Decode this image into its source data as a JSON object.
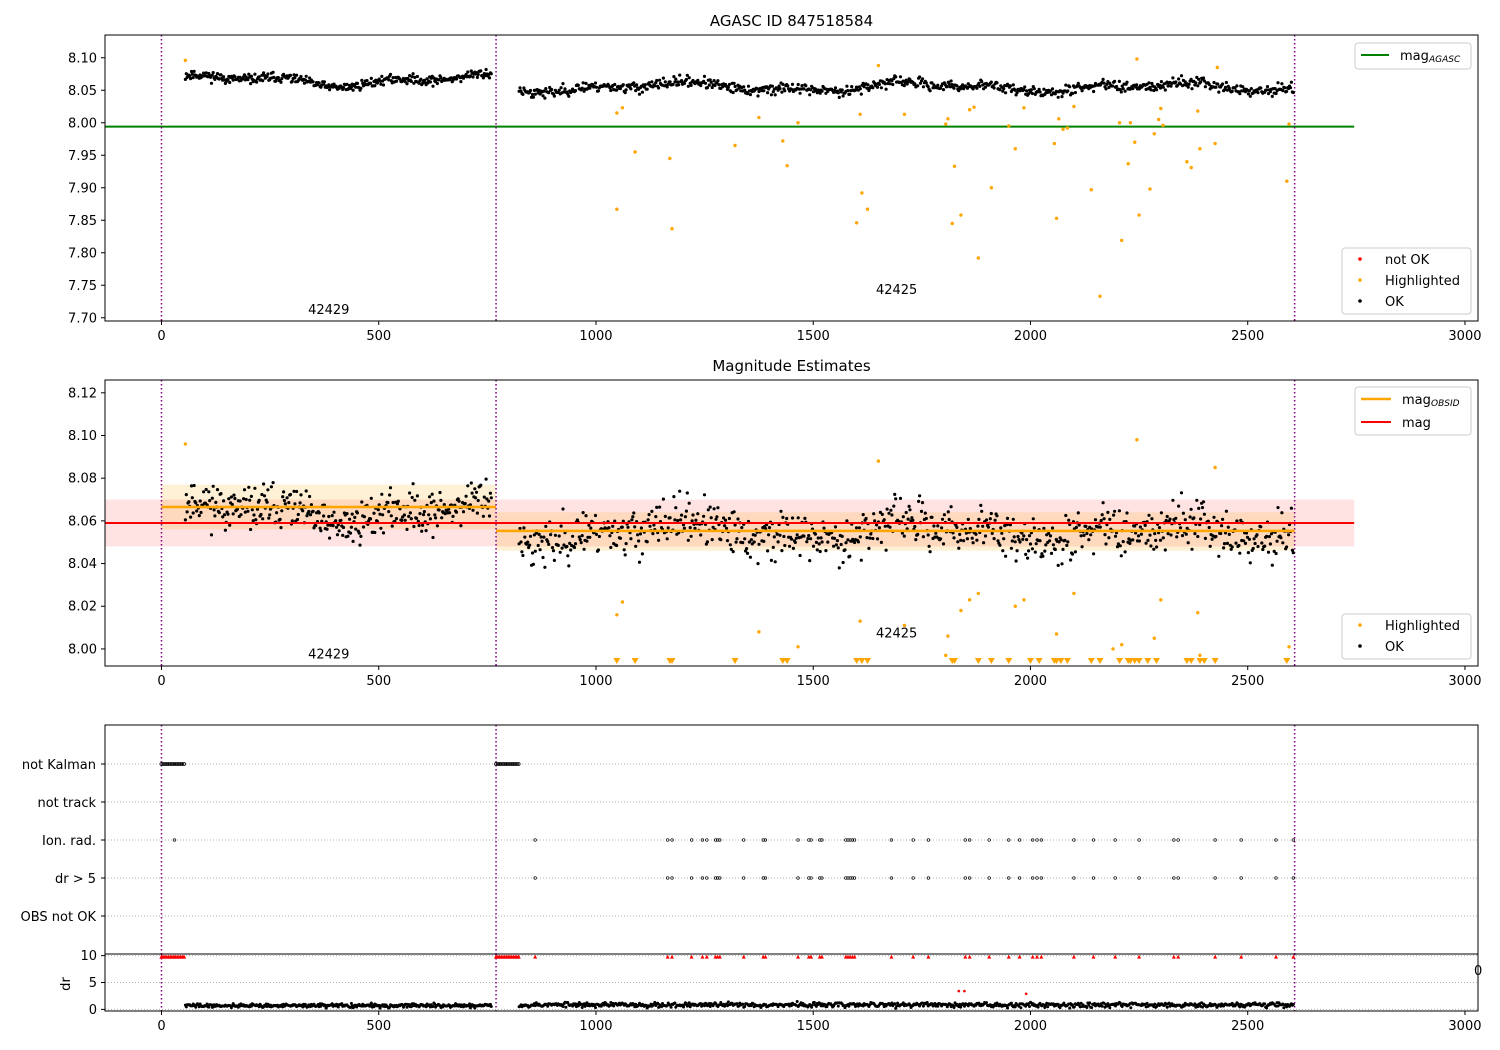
{
  "chart_data": [
    {
      "type": "scatter",
      "title": "AGASC ID 847518584",
      "xlim": [
        -130,
        3030
      ],
      "ylim": [
        7.695,
        8.135
      ],
      "xticks": [
        0,
        500,
        1000,
        1500,
        2000,
        2500,
        3000
      ],
      "yticks": [
        7.7,
        7.75,
        7.8,
        7.85,
        7.9,
        7.95,
        8.0,
        8.05,
        8.1
      ],
      "ytick_decimals": 2,
      "grid": false,
      "vlines": [
        0,
        770,
        2608
      ],
      "obsid_labels": [
        {
          "text": "42429",
          "x": 385,
          "y": 7.712
        },
        {
          "text": "42425",
          "x": 1692,
          "y": 7.743
        }
      ],
      "hline": {
        "y": 7.994,
        "x": [
          -130,
          2745
        ],
        "color": "#008000"
      },
      "segments": [
        {
          "x": [
            55,
            760
          ],
          "level": 8.065,
          "amp": 0.011,
          "noise": 0.007,
          "step": 2,
          "seed": 11
        },
        {
          "x": [
            823,
            2605
          ],
          "level": 8.055,
          "amp": 0.009,
          "noise": 0.008,
          "step": 2.2,
          "seed": 23
        }
      ],
      "highlighted": [
        [
          55,
          8.096
        ],
        [
          1048,
          8.015
        ],
        [
          1048,
          7.867
        ],
        [
          1061,
          8.023
        ],
        [
          1090,
          7.955
        ],
        [
          1170,
          7.945
        ],
        [
          1175,
          7.837
        ],
        [
          1320,
          7.965
        ],
        [
          1375,
          8.008
        ],
        [
          1430,
          7.972
        ],
        [
          1440,
          7.934
        ],
        [
          1465,
          8.0
        ],
        [
          1600,
          7.846
        ],
        [
          1608,
          8.013
        ],
        [
          1612,
          7.892
        ],
        [
          1625,
          7.867
        ],
        [
          1650,
          8.088
        ],
        [
          1710,
          8.013
        ],
        [
          1805,
          7.998
        ],
        [
          1810,
          8.006
        ],
        [
          1820,
          7.845
        ],
        [
          1825,
          7.933
        ],
        [
          1840,
          7.858
        ],
        [
          1860,
          8.02
        ],
        [
          1870,
          8.024
        ],
        [
          1880,
          7.792
        ],
        [
          1910,
          7.9
        ],
        [
          1950,
          7.995
        ],
        [
          1965,
          7.96
        ],
        [
          1985,
          8.023
        ],
        [
          2055,
          7.968
        ],
        [
          2060,
          7.853
        ],
        [
          2065,
          8.006
        ],
        [
          2075,
          7.99
        ],
        [
          2085,
          7.992
        ],
        [
          2100,
          8.025
        ],
        [
          2140,
          7.897
        ],
        [
          2160,
          7.733
        ],
        [
          2205,
          8.0
        ],
        [
          2210,
          7.819
        ],
        [
          2225,
          7.937
        ],
        [
          2230,
          8.0
        ],
        [
          2240,
          7.97
        ],
        [
          2245,
          8.098
        ],
        [
          2250,
          7.858
        ],
        [
          2275,
          7.898
        ],
        [
          2285,
          7.983
        ],
        [
          2295,
          8.005
        ],
        [
          2300,
          8.022
        ],
        [
          2305,
          7.996
        ],
        [
          2360,
          7.94
        ],
        [
          2370,
          7.931
        ],
        [
          2385,
          8.018
        ],
        [
          2390,
          7.96
        ],
        [
          2425,
          7.968
        ],
        [
          2430,
          8.085
        ],
        [
          2590,
          7.91
        ],
        [
          2595,
          7.998
        ]
      ],
      "not_ok": [],
      "legend": {
        "series": [
          {
            "label": "mag",
            "sub": "AGASC",
            "color": "#008000",
            "kind": "line"
          }
        ],
        "markers": [
          {
            "label": "not OK",
            "color": "#ff0000"
          },
          {
            "label": "Highlighted",
            "color": "#ffa500"
          },
          {
            "label": "OK",
            "color": "#000000"
          }
        ],
        "series_position": "top-right",
        "markers_position": "bottom-right"
      }
    },
    {
      "type": "scatter",
      "title": "Magnitude Estimates",
      "xlim": [
        -130,
        3030
      ],
      "ylim": [
        7.992,
        8.126
      ],
      "xticks": [
        0,
        500,
        1000,
        1500,
        2000,
        2500,
        3000
      ],
      "yticks": [
        8.0,
        8.02,
        8.04,
        8.06,
        8.08,
        8.1,
        8.12
      ],
      "ytick_decimals": 2,
      "grid": false,
      "vlines": [
        0,
        770,
        2608
      ],
      "obsid_labels": [
        {
          "text": "42429",
          "x": 385,
          "y": 7.9975
        },
        {
          "text": "42425",
          "x": 1692,
          "y": 8.0073
        }
      ],
      "mag": {
        "y": 8.059,
        "band": [
          8.048,
          8.07
        ],
        "x": [
          -130,
          2745
        ],
        "color": "#ff0000"
      },
      "mag_obsid": [
        {
          "x": [
            0,
            770
          ],
          "y": 8.0665,
          "band": [
            8.056,
            8.077
          ]
        },
        {
          "x": [
            770,
            2608
          ],
          "y": 8.0553,
          "band": [
            8.046,
            8.064
          ]
        }
      ],
      "segments": [
        {
          "x": [
            55,
            760
          ],
          "level": 8.064,
          "amp": 0.007,
          "noise": 0.0095,
          "step": 2,
          "seed": 11
        },
        {
          "x": [
            823,
            2605
          ],
          "level": 8.055,
          "amp": 0.006,
          "noise": 0.0105,
          "step": 2.2,
          "seed": 23
        }
      ],
      "highlighted": [
        [
          55,
          8.096
        ],
        [
          1048,
          8.016
        ],
        [
          1061,
          8.022
        ],
        [
          1375,
          8.008
        ],
        [
          1465,
          8.001
        ],
        [
          1608,
          8.013
        ],
        [
          1650,
          8.088
        ],
        [
          1710,
          8.011
        ],
        [
          1810,
          8.006
        ],
        [
          1805,
          7.997
        ],
        [
          1840,
          8.018
        ],
        [
          1860,
          8.023
        ],
        [
          1880,
          8.026
        ],
        [
          1965,
          8.02
        ],
        [
          1985,
          8.023
        ],
        [
          2060,
          8.007
        ],
        [
          2100,
          8.026
        ],
        [
          2190,
          8.0
        ],
        [
          2210,
          8.002
        ],
        [
          2245,
          8.098
        ],
        [
          2285,
          8.005
        ],
        [
          2300,
          8.023
        ],
        [
          2385,
          8.017
        ],
        [
          2390,
          7.997
        ],
        [
          2425,
          8.085
        ],
        [
          2595,
          8.001
        ]
      ],
      "clipped_x": [
        1048,
        1090,
        1170,
        1175,
        1320,
        1430,
        1440,
        1600,
        1612,
        1625,
        1820,
        1825,
        1880,
        1910,
        1950,
        2000,
        2020,
        2055,
        2060,
        2070,
        2085,
        2140,
        2160,
        2205,
        2225,
        2230,
        2240,
        2250,
        2270,
        2290,
        2360,
        2370,
        2390,
        2400,
        2425,
        2590
      ],
      "legend": {
        "series": [
          {
            "label": "mag",
            "sub": "OBSID",
            "color": "#ffa500",
            "kind": "line"
          },
          {
            "label": "mag",
            "sub": "",
            "color": "#ff0000",
            "kind": "line"
          }
        ],
        "markers": [
          {
            "label": "Highlighted",
            "color": "#ffa500"
          },
          {
            "label": "OK",
            "color": "#000000"
          }
        ],
        "series_position": "top-right",
        "markers_position": "bottom-right"
      }
    },
    {
      "type": "scatter",
      "title": "",
      "xlim": [
        -130,
        3030
      ],
      "categories": [
        "not Kalman",
        "not track",
        "Ion. rad.",
        "dr > 5",
        "OBS not OK"
      ],
      "grid": true,
      "vlines": [
        0,
        770,
        2608
      ],
      "flags": {
        "not Kalman": [
          [
            0,
            52
          ],
          [
            770,
            825
          ]
        ],
        "not track": [],
        "Ion. rad.": [
          30,
          860,
          1165,
          1175,
          1220,
          1245,
          1255,
          1275,
          1280,
          1285,
          1340,
          1385,
          1390,
          1465,
          1490,
          1495,
          1515,
          1520,
          1575,
          1580,
          1585,
          1590,
          1595,
          1680,
          1730,
          1765,
          1850,
          1860,
          1905,
          1950,
          1975,
          2005,
          2015,
          2025,
          2100,
          2145,
          2195,
          2250,
          2330,
          2340,
          2425,
          2485,
          2565,
          2605
        ],
        "dr > 5": [
          860,
          1165,
          1175,
          1220,
          1245,
          1255,
          1275,
          1280,
          1285,
          1340,
          1385,
          1390,
          1465,
          1490,
          1495,
          1515,
          1520,
          1575,
          1580,
          1585,
          1590,
          1595,
          1680,
          1730,
          1765,
          1850,
          1860,
          1905,
          1950,
          1975,
          2005,
          2015,
          2025,
          2100,
          2145,
          2195,
          2250,
          2330,
          2340,
          2425,
          2485,
          2565,
          2605
        ],
        "OBS not OK": []
      }
    },
    {
      "type": "scatter",
      "title": "",
      "ylabel": "dr",
      "xlim": [
        -130,
        3030
      ],
      "ylim": [
        -0.3,
        10.3
      ],
      "xticks": [
        0,
        500,
        1000,
        1500,
        2000,
        2500,
        3000
      ],
      "yticks": [
        0,
        5,
        10
      ],
      "grid": true,
      "vlines": [
        0,
        770,
        2608
      ],
      "clipped_ranges": [
        [
          0,
          52
        ],
        [
          770,
          825
        ]
      ],
      "red_points": [
        [
          1835,
          3.4
        ],
        [
          1848,
          3.4
        ],
        [
          1990,
          2.9
        ]
      ],
      "segments": [
        {
          "x": [
            55,
            760
          ],
          "level": 0.7,
          "noise": 0.35,
          "step": 2,
          "seed": 41
        },
        {
          "x": [
            823,
            2605
          ],
          "level": 0.85,
          "noise": 0.45,
          "step": 2.2,
          "seed": 53
        }
      ]
    }
  ],
  "colors": {
    "ok": "#000000",
    "highlighted": "#ffa500",
    "not_ok": "#ff0000",
    "agasc_line": "#008000",
    "obsid_line": "#ffa500",
    "mag_line": "#ff0000",
    "vline": "#800080"
  },
  "cutoff_tick_fragment": "0"
}
